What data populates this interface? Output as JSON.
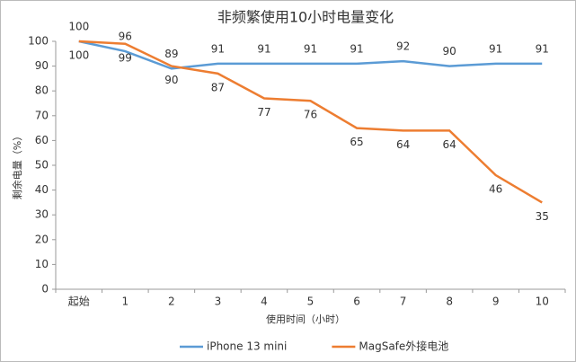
{
  "chart_data": {
    "type": "line",
    "title": "非频繁使用10小时电量变化",
    "x_label": "使用时间（小时）",
    "y_label": "剩余电量（%）",
    "categories": [
      "起始",
      "1",
      "2",
      "3",
      "4",
      "5",
      "6",
      "7",
      "8",
      "9",
      "10"
    ],
    "series": [
      {
        "name": "iPhone 13 mini",
        "color": "#5b9bd5",
        "values": [
          100,
          96,
          89,
          91,
          91,
          91,
          91,
          92,
          90,
          91,
          91
        ]
      },
      {
        "name": "MagSafe外接电池",
        "color": "#ed7d31",
        "values": [
          100,
          99,
          90,
          87,
          77,
          76,
          65,
          64,
          64,
          46,
          35
        ]
      }
    ],
    "ylim": [
      0,
      100
    ],
    "yticks": [
      0,
      10,
      20,
      30,
      40,
      50,
      60,
      70,
      80,
      90,
      100
    ],
    "legend": "bottom"
  }
}
